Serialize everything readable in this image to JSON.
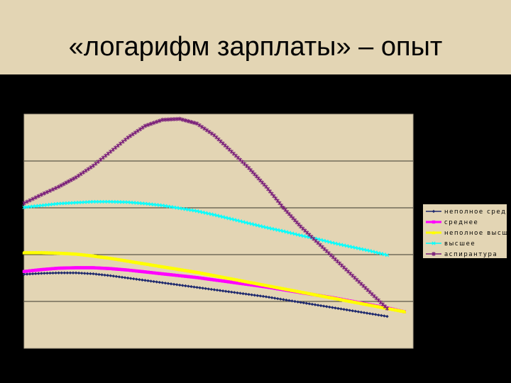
{
  "slide": {
    "title": "«логарифм зарплаты» – опыт",
    "background_color": "#000000",
    "title_band_color": "#e3d5b4",
    "chart_bg_color": "#e3d5b4"
  },
  "chart_data": {
    "type": "line",
    "title": "",
    "xlabel": "",
    "ylabel": "",
    "xlim": [
      0,
      45
    ],
    "ylim": [
      0,
      5
    ],
    "grid": true,
    "legend_position": "right",
    "x": [
      0,
      2,
      4,
      6,
      8,
      10,
      12,
      14,
      16,
      18,
      20,
      22,
      24,
      26,
      28,
      30,
      32,
      34,
      36,
      38,
      40,
      42,
      44
    ],
    "series": [
      {
        "name": "неполное среднее",
        "color": "#1f2a6e",
        "marker": "diamond",
        "values": [
          1.58,
          1.6,
          1.61,
          1.61,
          1.59,
          1.55,
          1.5,
          1.45,
          1.4,
          1.35,
          1.3,
          1.25,
          1.2,
          1.15,
          1.1,
          1.04,
          0.98,
          0.92,
          0.86,
          0.8,
          0.74,
          0.68,
          null
        ]
      },
      {
        "name": "среднее",
        "color": "#ff00ff",
        "marker": "square",
        "values": [
          1.64,
          1.68,
          1.71,
          1.72,
          1.72,
          1.7,
          1.67,
          1.63,
          1.59,
          1.55,
          1.51,
          1.46,
          1.41,
          1.36,
          1.31,
          1.25,
          1.19,
          1.13,
          1.07,
          1.0,
          0.93,
          0.86,
          0.78
        ]
      },
      {
        "name": "неполное высшее",
        "color": "#ffff00",
        "marker": "triangle",
        "values": [
          2.04,
          2.04,
          2.03,
          2.01,
          1.97,
          1.92,
          1.86,
          1.8,
          1.74,
          1.68,
          1.62,
          1.55,
          1.48,
          1.41,
          1.34,
          1.27,
          1.2,
          1.13,
          1.06,
          0.99,
          0.92,
          0.85,
          0.78
        ]
      },
      {
        "name": "высшее",
        "color": "#00ffff",
        "marker": "x",
        "values": [
          3.01,
          3.05,
          3.09,
          3.11,
          3.13,
          3.13,
          3.12,
          3.09,
          3.05,
          2.99,
          2.93,
          2.85,
          2.76,
          2.67,
          2.58,
          2.5,
          2.41,
          2.33,
          2.24,
          2.16,
          2.08,
          1.99,
          null
        ]
      },
      {
        "name": "аспирантура",
        "color": "#7a1f7a",
        "marker": "star",
        "values": [
          3.1,
          3.28,
          3.45,
          3.65,
          3.9,
          4.2,
          4.5,
          4.75,
          4.88,
          4.9,
          4.8,
          4.55,
          4.2,
          3.85,
          3.45,
          3.0,
          2.6,
          2.25,
          1.9,
          1.55,
          1.2,
          0.85,
          null
        ]
      }
    ]
  }
}
